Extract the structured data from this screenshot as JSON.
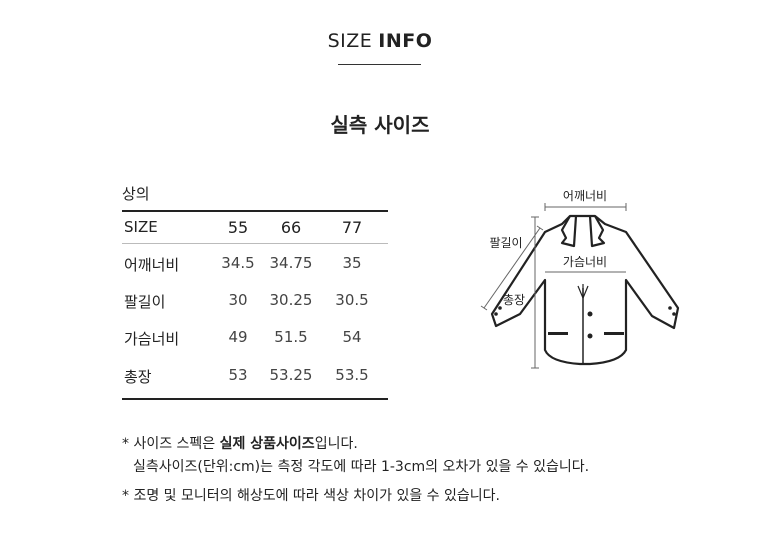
{
  "header": {
    "title_light": "SIZE",
    "title_bold": "INFO",
    "subtitle": "실측 사이즈"
  },
  "table": {
    "category": "상의",
    "columns": [
      "SIZE",
      "55",
      "66",
      "77"
    ],
    "rows": [
      {
        "label": "어깨너비",
        "values": [
          "34.5",
          "34.75",
          "35"
        ]
      },
      {
        "label": "팔길이",
        "values": [
          "30",
          "30.25",
          "30.5"
        ]
      },
      {
        "label": "가슴너비",
        "values": [
          "49",
          "51.5",
          "54"
        ]
      },
      {
        "label": "총장",
        "values": [
          "53",
          "53.25",
          "53.5"
        ]
      }
    ]
  },
  "diagram": {
    "shoulder": "어깨너비",
    "sleeve": "팔길이",
    "chest": "가슴너비",
    "length": "총장"
  },
  "notes": {
    "line1_prefix": "* 사이즈 스펙은 ",
    "line1_bold": "실제 상품사이즈",
    "line1_suffix": "입니다.",
    "line2": "실측사이즈(단위:cm)는 측정 각도에 따라 1-3cm의 오차가 있을 수 있습니다.",
    "line3": "* 조명 및 모니터의 해상도에 따라 색상 차이가 있을 수 있습니다."
  }
}
